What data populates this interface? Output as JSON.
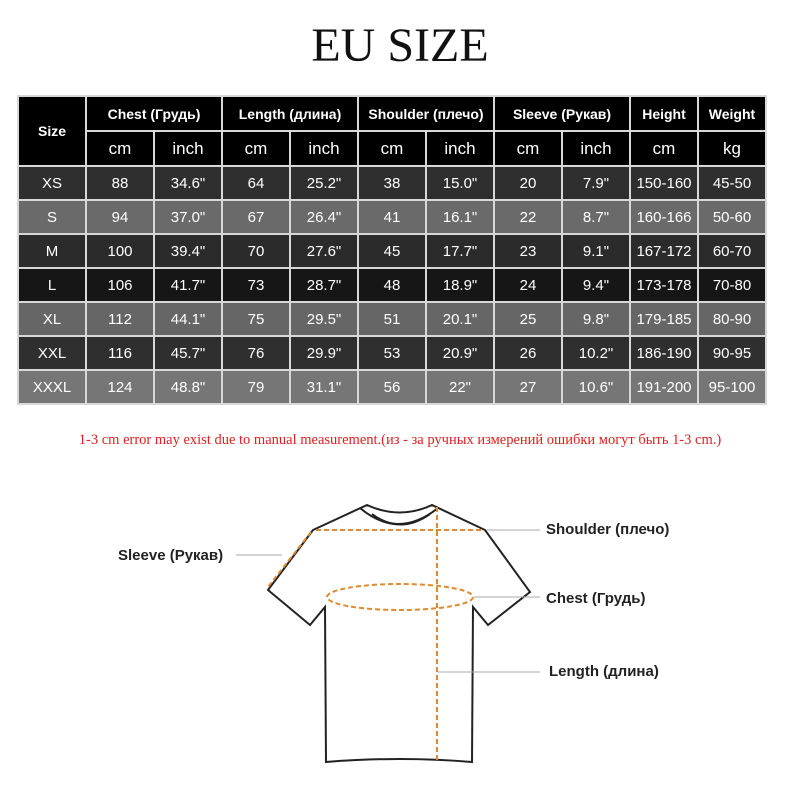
{
  "title": "EU SIZE",
  "table": {
    "size_header": "Size",
    "groups": [
      {
        "label": "Chest  (Грудь)",
        "units": [
          "cm",
          "inch"
        ]
      },
      {
        "label": "Length (длина)",
        "units": [
          "cm",
          "inch"
        ]
      },
      {
        "label": "Shoulder (плечо)",
        "units": [
          "cm",
          "inch"
        ]
      },
      {
        "label": "Sleeve (Рукав)",
        "units": [
          "cm",
          "inch"
        ]
      },
      {
        "label": "Height",
        "units": [
          "cm"
        ]
      },
      {
        "label": "Weight",
        "units": [
          "kg"
        ]
      }
    ],
    "rows": [
      {
        "size": "XS",
        "values": [
          "88",
          "34.6\"",
          "64",
          "25.2\"",
          "38",
          "15.0\"",
          "20",
          "7.9\"",
          "150-160",
          "45-50"
        ],
        "bg": "#2f2f2f"
      },
      {
        "size": "S",
        "values": [
          "94",
          "37.0\"",
          "67",
          "26.4\"",
          "41",
          "16.1\"",
          "22",
          "8.7\"",
          "160-166",
          "50-60"
        ],
        "bg": "#6a6a6a"
      },
      {
        "size": "M",
        "values": [
          "100",
          "39.4\"",
          "70",
          "27.6\"",
          "45",
          "17.7\"",
          "23",
          "9.1\"",
          "167-172",
          "60-70"
        ],
        "bg": "#2b2b2b"
      },
      {
        "size": "L",
        "values": [
          "106",
          "41.7\"",
          "73",
          "28.7\"",
          "48",
          "18.9\"",
          "24",
          "9.4\"",
          "173-178",
          "70-80"
        ],
        "bg": "#161616"
      },
      {
        "size": "XL",
        "values": [
          "112",
          "44.1\"",
          "75",
          "29.5\"",
          "51",
          "20.1\"",
          "25",
          "9.8\"",
          "179-185",
          "80-90"
        ],
        "bg": "#666666"
      },
      {
        "size": "XXL",
        "values": [
          "116",
          "45.7\"",
          "76",
          "29.9\"",
          "53",
          "20.9\"",
          "26",
          "10.2\"",
          "186-190",
          "90-95"
        ],
        "bg": "#2f2f2f"
      },
      {
        "size": "XXXL",
        "values": [
          "124",
          "48.8\"",
          "79",
          "31.1\"",
          "56",
          "22\"",
          "27",
          "10.6\"",
          "191-200",
          "95-100"
        ],
        "bg": "#767676"
      }
    ]
  },
  "note": "1-3 cm error may exist due to manual measurement.(из - за ручных измерений ошибки могут быть 1-3 cm.)",
  "diagram": {
    "sleeve": "Sleeve (Рукав)",
    "shoulder": "Shoulder (плечо)",
    "chest": "Chest  (Грудь)",
    "length": "Length (длина)",
    "measure_color": "#e08a30"
  }
}
